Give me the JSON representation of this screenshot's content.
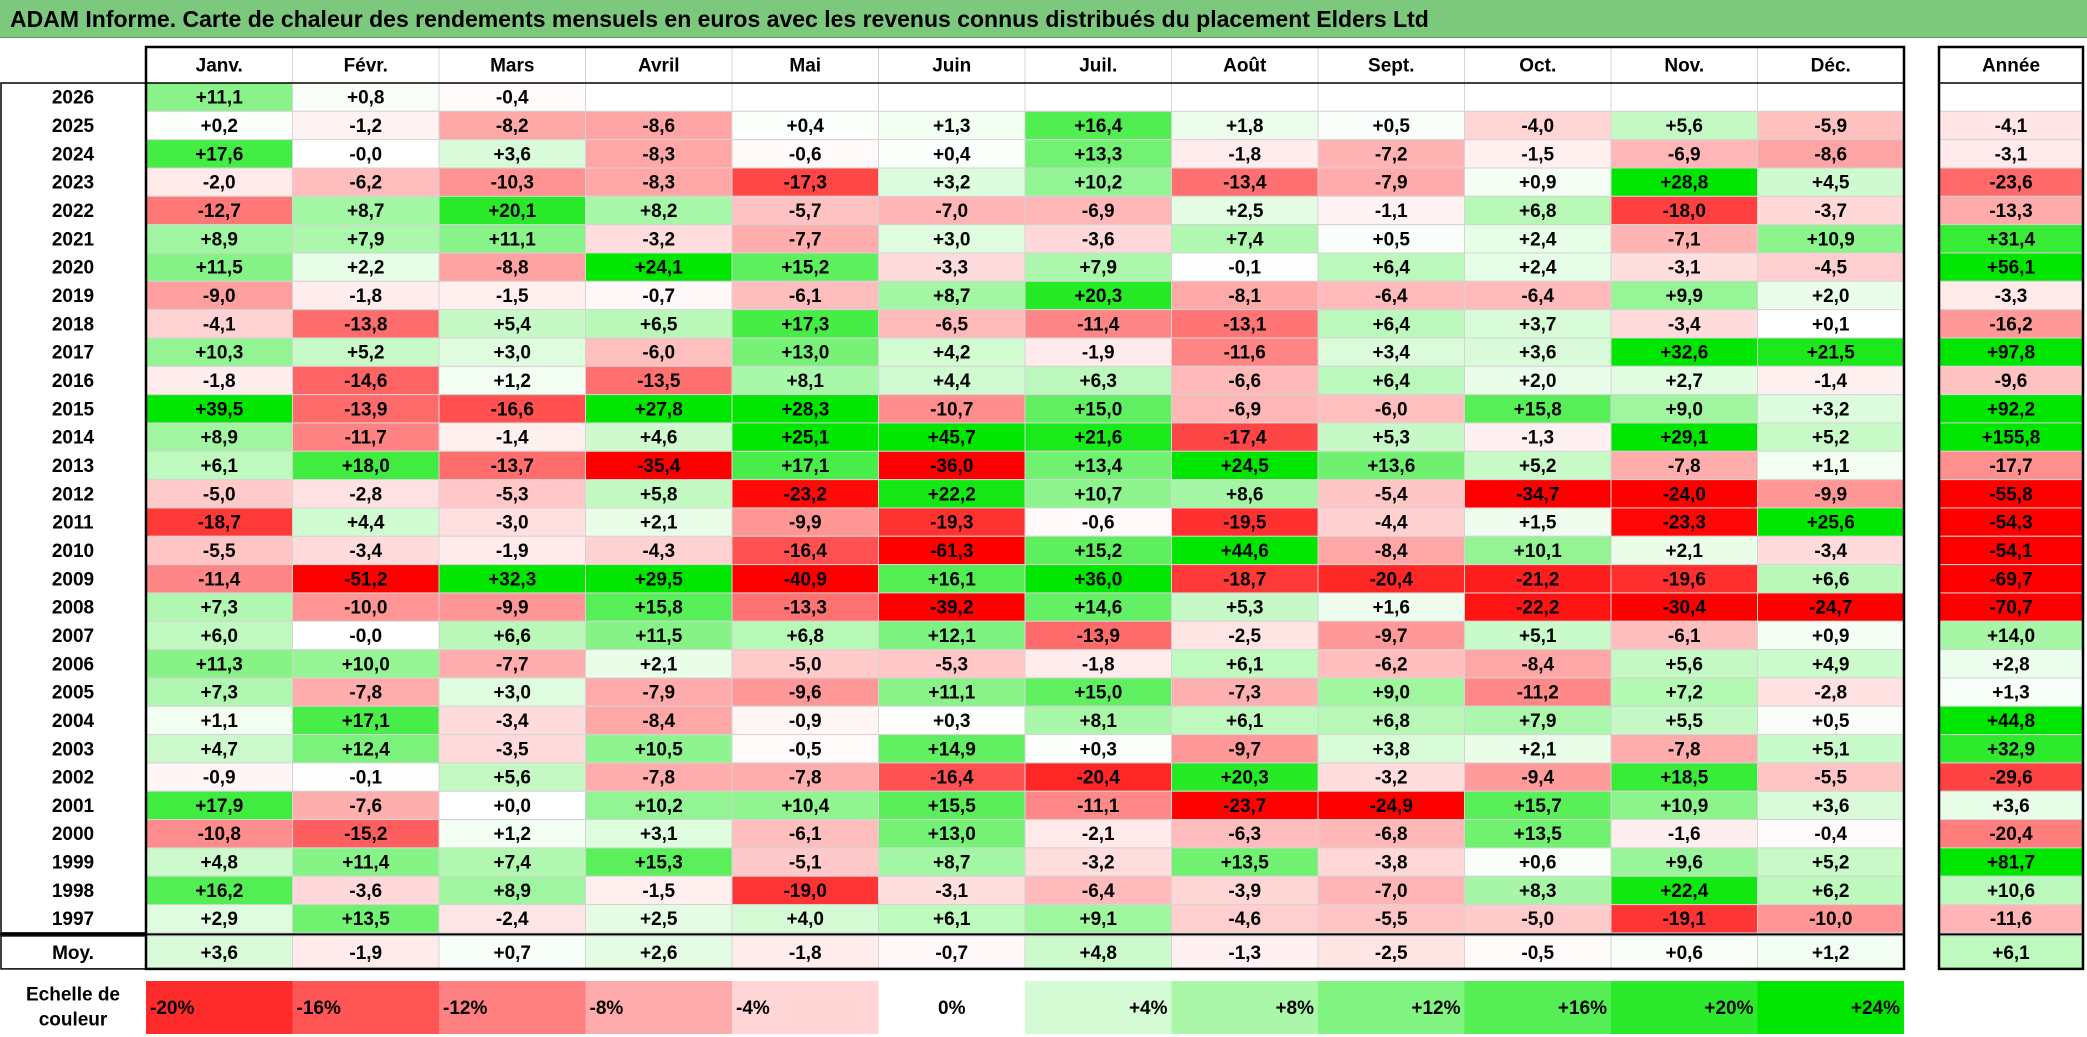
{
  "title": "ADAM Informe. Carte de chaleur des rendements mensuels en euros avec les revenus connus distribués du placement Elders Ltd",
  "chart_data": {
    "type": "heatmap",
    "months": [
      "Janv.",
      "Févr.",
      "Mars",
      "Avril",
      "Mai",
      "Juin",
      "Juil.",
      "Août",
      "Sept.",
      "Oct.",
      "Nov.",
      "Déc."
    ],
    "year_header": "Année",
    "rows": [
      {
        "year": "2026",
        "values": [
          "+11,1",
          "+0,8",
          "-0,4",
          "",
          "",
          "",
          "",
          "",
          "",
          "",
          "",
          ""
        ],
        "total": ""
      },
      {
        "year": "2025",
        "values": [
          "+0,2",
          "-1,2",
          "-8,2",
          "-8,6",
          "+0,4",
          "+1,3",
          "+16,4",
          "+1,8",
          "+0,5",
          "-4,0",
          "+5,6",
          "-5,9"
        ],
        "total": "-4,1"
      },
      {
        "year": "2024",
        "values": [
          "+17,6",
          "-0,0",
          "+3,6",
          "-8,3",
          "-0,6",
          "+0,4",
          "+13,3",
          "-1,8",
          "-7,2",
          "-1,5",
          "-6,9",
          "-8,6"
        ],
        "total": "-3,1"
      },
      {
        "year": "2023",
        "values": [
          "-2,0",
          "-6,2",
          "-10,3",
          "-8,3",
          "-17,3",
          "+3,2",
          "+10,2",
          "-13,4",
          "-7,9",
          "+0,9",
          "+28,8",
          "+4,5"
        ],
        "total": "-23,6"
      },
      {
        "year": "2022",
        "values": [
          "-12,7",
          "+8,7",
          "+20,1",
          "+8,2",
          "-5,7",
          "-7,0",
          "-6,9",
          "+2,5",
          "-1,1",
          "+6,8",
          "-18,0",
          "-3,7"
        ],
        "total": "-13,3"
      },
      {
        "year": "2021",
        "values": [
          "+8,9",
          "+7,9",
          "+11,1",
          "-3,2",
          "-7,7",
          "+3,0",
          "-3,6",
          "+7,4",
          "+0,5",
          "+2,4",
          "-7,1",
          "+10,9"
        ],
        "total": "+31,4"
      },
      {
        "year": "2020",
        "values": [
          "+11,5",
          "+2,2",
          "-8,8",
          "+24,1",
          "+15,2",
          "-3,3",
          "+7,9",
          "-0,1",
          "+6,4",
          "+2,4",
          "-3,1",
          "-4,5"
        ],
        "total": "+56,1"
      },
      {
        "year": "2019",
        "values": [
          "-9,0",
          "-1,8",
          "-1,5",
          "-0,7",
          "-6,1",
          "+8,7",
          "+20,3",
          "-8,1",
          "-6,4",
          "-6,4",
          "+9,9",
          "+2,0"
        ],
        "total": "-3,3"
      },
      {
        "year": "2018",
        "values": [
          "-4,1",
          "-13,8",
          "+5,4",
          "+6,5",
          "+17,3",
          "-6,5",
          "-11,4",
          "-13,1",
          "+6,4",
          "+3,7",
          "-3,4",
          "+0,1"
        ],
        "total": "-16,2"
      },
      {
        "year": "2017",
        "values": [
          "+10,3",
          "+5,2",
          "+3,0",
          "-6,0",
          "+13,0",
          "+4,2",
          "-1,9",
          "-11,6",
          "+3,4",
          "+3,6",
          "+32,6",
          "+21,5"
        ],
        "total": "+97,8"
      },
      {
        "year": "2016",
        "values": [
          "-1,8",
          "-14,6",
          "+1,2",
          "-13,5",
          "+8,1",
          "+4,4",
          "+6,3",
          "-6,6",
          "+6,4",
          "+2,0",
          "+2,7",
          "-1,4"
        ],
        "total": "-9,6"
      },
      {
        "year": "2015",
        "values": [
          "+39,5",
          "-13,9",
          "-16,6",
          "+27,8",
          "+28,3",
          "-10,7",
          "+15,0",
          "-6,9",
          "-6,0",
          "+15,8",
          "+9,0",
          "+3,2"
        ],
        "total": "+92,2"
      },
      {
        "year": "2014",
        "values": [
          "+8,9",
          "-11,7",
          "-1,4",
          "+4,6",
          "+25,1",
          "+45,7",
          "+21,6",
          "-17,4",
          "+5,3",
          "-1,3",
          "+29,1",
          "+5,2"
        ],
        "total": "+155,8"
      },
      {
        "year": "2013",
        "values": [
          "+6,1",
          "+18,0",
          "-13,7",
          "-35,4",
          "+17,1",
          "-36,0",
          "+13,4",
          "+24,5",
          "+13,6",
          "+5,2",
          "-7,8",
          "+1,1"
        ],
        "total": "-17,7"
      },
      {
        "year": "2012",
        "values": [
          "-5,0",
          "-2,8",
          "-5,3",
          "+5,8",
          "-23,2",
          "+22,2",
          "+10,7",
          "+8,6",
          "-5,4",
          "-34,7",
          "-24,0",
          "-9,9"
        ],
        "total": "-55,8"
      },
      {
        "year": "2011",
        "values": [
          "-18,7",
          "+4,4",
          "-3,0",
          "+2,1",
          "-9,9",
          "-19,3",
          "-0,6",
          "-19,5",
          "-4,4",
          "+1,5",
          "-23,3",
          "+25,6"
        ],
        "total": "-54,3"
      },
      {
        "year": "2010",
        "values": [
          "-5,5",
          "-3,4",
          "-1,9",
          "-4,3",
          "-16,4",
          "-61,3",
          "+15,2",
          "+44,6",
          "-8,4",
          "+10,1",
          "+2,1",
          "-3,4"
        ],
        "total": "-54,1"
      },
      {
        "year": "2009",
        "values": [
          "-11,4",
          "-51,2",
          "+32,3",
          "+29,5",
          "-40,9",
          "+16,1",
          "+36,0",
          "-18,7",
          "-20,4",
          "-21,2",
          "-19,6",
          "+6,6"
        ],
        "total": "-69,7"
      },
      {
        "year": "2008",
        "values": [
          "+7,3",
          "-10,0",
          "-9,9",
          "+15,8",
          "-13,3",
          "-39,2",
          "+14,6",
          "+5,3",
          "+1,6",
          "-22,2",
          "-30,4",
          "-24,7"
        ],
        "total": "-70,7"
      },
      {
        "year": "2007",
        "values": [
          "+6,0",
          "-0,0",
          "+6,6",
          "+11,5",
          "+6,8",
          "+12,1",
          "-13,9",
          "-2,5",
          "-9,7",
          "+5,1",
          "-6,1",
          "+0,9"
        ],
        "total": "+14,0"
      },
      {
        "year": "2006",
        "values": [
          "+11,3",
          "+10,0",
          "-7,7",
          "+2,1",
          "-5,0",
          "-5,3",
          "-1,8",
          "+6,1",
          "-6,2",
          "-8,4",
          "+5,6",
          "+4,9"
        ],
        "total": "+2,8"
      },
      {
        "year": "2005",
        "values": [
          "+7,3",
          "-7,8",
          "+3,0",
          "-7,9",
          "-9,6",
          "+11,1",
          "+15,0",
          "-7,3",
          "+9,0",
          "-11,2",
          "+7,2",
          "-2,8"
        ],
        "total": "+1,3"
      },
      {
        "year": "2004",
        "values": [
          "+1,1",
          "+17,1",
          "-3,4",
          "-8,4",
          "-0,9",
          "+0,3",
          "+8,1",
          "+6,1",
          "+6,8",
          "+7,9",
          "+5,5",
          "+0,5"
        ],
        "total": "+44,8"
      },
      {
        "year": "2003",
        "values": [
          "+4,7",
          "+12,4",
          "-3,5",
          "+10,5",
          "-0,5",
          "+14,9",
          "+0,3",
          "-9,7",
          "+3,8",
          "+2,1",
          "-7,8",
          "+5,1"
        ],
        "total": "+32,9"
      },
      {
        "year": "2002",
        "values": [
          "-0,9",
          "-0,1",
          "+5,6",
          "-7,8",
          "-7,8",
          "-16,4",
          "-20,4",
          "+20,3",
          "-3,2",
          "-9,4",
          "+18,5",
          "-5,5"
        ],
        "total": "-29,6"
      },
      {
        "year": "2001",
        "values": [
          "+17,9",
          "-7,6",
          "+0,0",
          "+10,2",
          "+10,4",
          "+15,5",
          "-11,1",
          "-23,7",
          "-24,9",
          "+15,7",
          "+10,9",
          "+3,6"
        ],
        "total": "+3,6"
      },
      {
        "year": "2000",
        "values": [
          "-10,8",
          "-15,2",
          "+1,2",
          "+3,1",
          "-6,1",
          "+13,0",
          "-2,1",
          "-6,3",
          "-6,8",
          "+13,5",
          "-1,6",
          "-0,4"
        ],
        "total": "-20,4"
      },
      {
        "year": "1999",
        "values": [
          "+4,8",
          "+11,4",
          "+7,4",
          "+15,3",
          "-5,1",
          "+8,7",
          "-3,2",
          "+13,5",
          "-3,8",
          "+0,6",
          "+9,6",
          "+5,2"
        ],
        "total": "+81,7"
      },
      {
        "year": "1998",
        "values": [
          "+16,2",
          "-3,6",
          "+8,9",
          "-1,5",
          "-19,0",
          "-3,1",
          "-6,4",
          "-3,9",
          "-7,0",
          "+8,3",
          "+22,4",
          "+6,2"
        ],
        "total": "+10,6"
      },
      {
        "year": "1997",
        "values": [
          "+2,9",
          "+13,5",
          "-2,4",
          "+2,5",
          "+4,0",
          "+6,1",
          "+9,1",
          "-4,6",
          "-5,5",
          "-5,0",
          "-19,1",
          "-10,0"
        ],
        "total": "-11,6"
      }
    ],
    "average": {
      "label": "Moy.",
      "values": [
        "+3,6",
        "-1,9",
        "+0,7",
        "+2,6",
        "-1,8",
        "-0,7",
        "+4,8",
        "-1,3",
        "-2,5",
        "-0,5",
        "+0,6",
        "+1,2"
      ],
      "total": "+6,1"
    },
    "scale": {
      "label_line1": "Echelle de",
      "label_line2": "couleur",
      "steps": [
        "-20%",
        "-16%",
        "-12%",
        "-8%",
        "-4%",
        "0%",
        "+4%",
        "+8%",
        "+12%",
        "+16%",
        "+20%",
        "+24%"
      ]
    },
    "colors": {
      "neg_max": "#ff0000",
      "pos_max": "#00e600",
      "neutral": "#ffffff",
      "grid": "#d4d4d4",
      "border": "#000000"
    }
  }
}
